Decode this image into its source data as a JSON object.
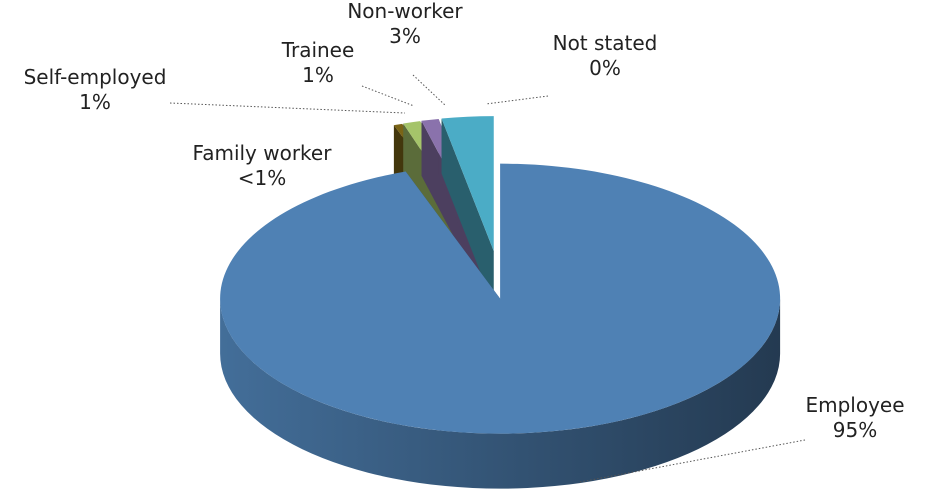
{
  "chart_data": {
    "type": "pie",
    "categories": [
      "Employee",
      "Family worker",
      "Self-employed",
      "Trainee",
      "Non-worker",
      "Not stated"
    ],
    "values": [
      95,
      0.5,
      1,
      1,
      3,
      0
    ],
    "value_labels": [
      "95%",
      "<1%",
      "1%",
      "1%",
      "3%",
      "0%"
    ],
    "colors": [
      "#4f81b4",
      "#7a6416",
      "#a5c46a",
      "#8a72ac",
      "#4bacc6",
      "#f79646"
    ]
  }
}
